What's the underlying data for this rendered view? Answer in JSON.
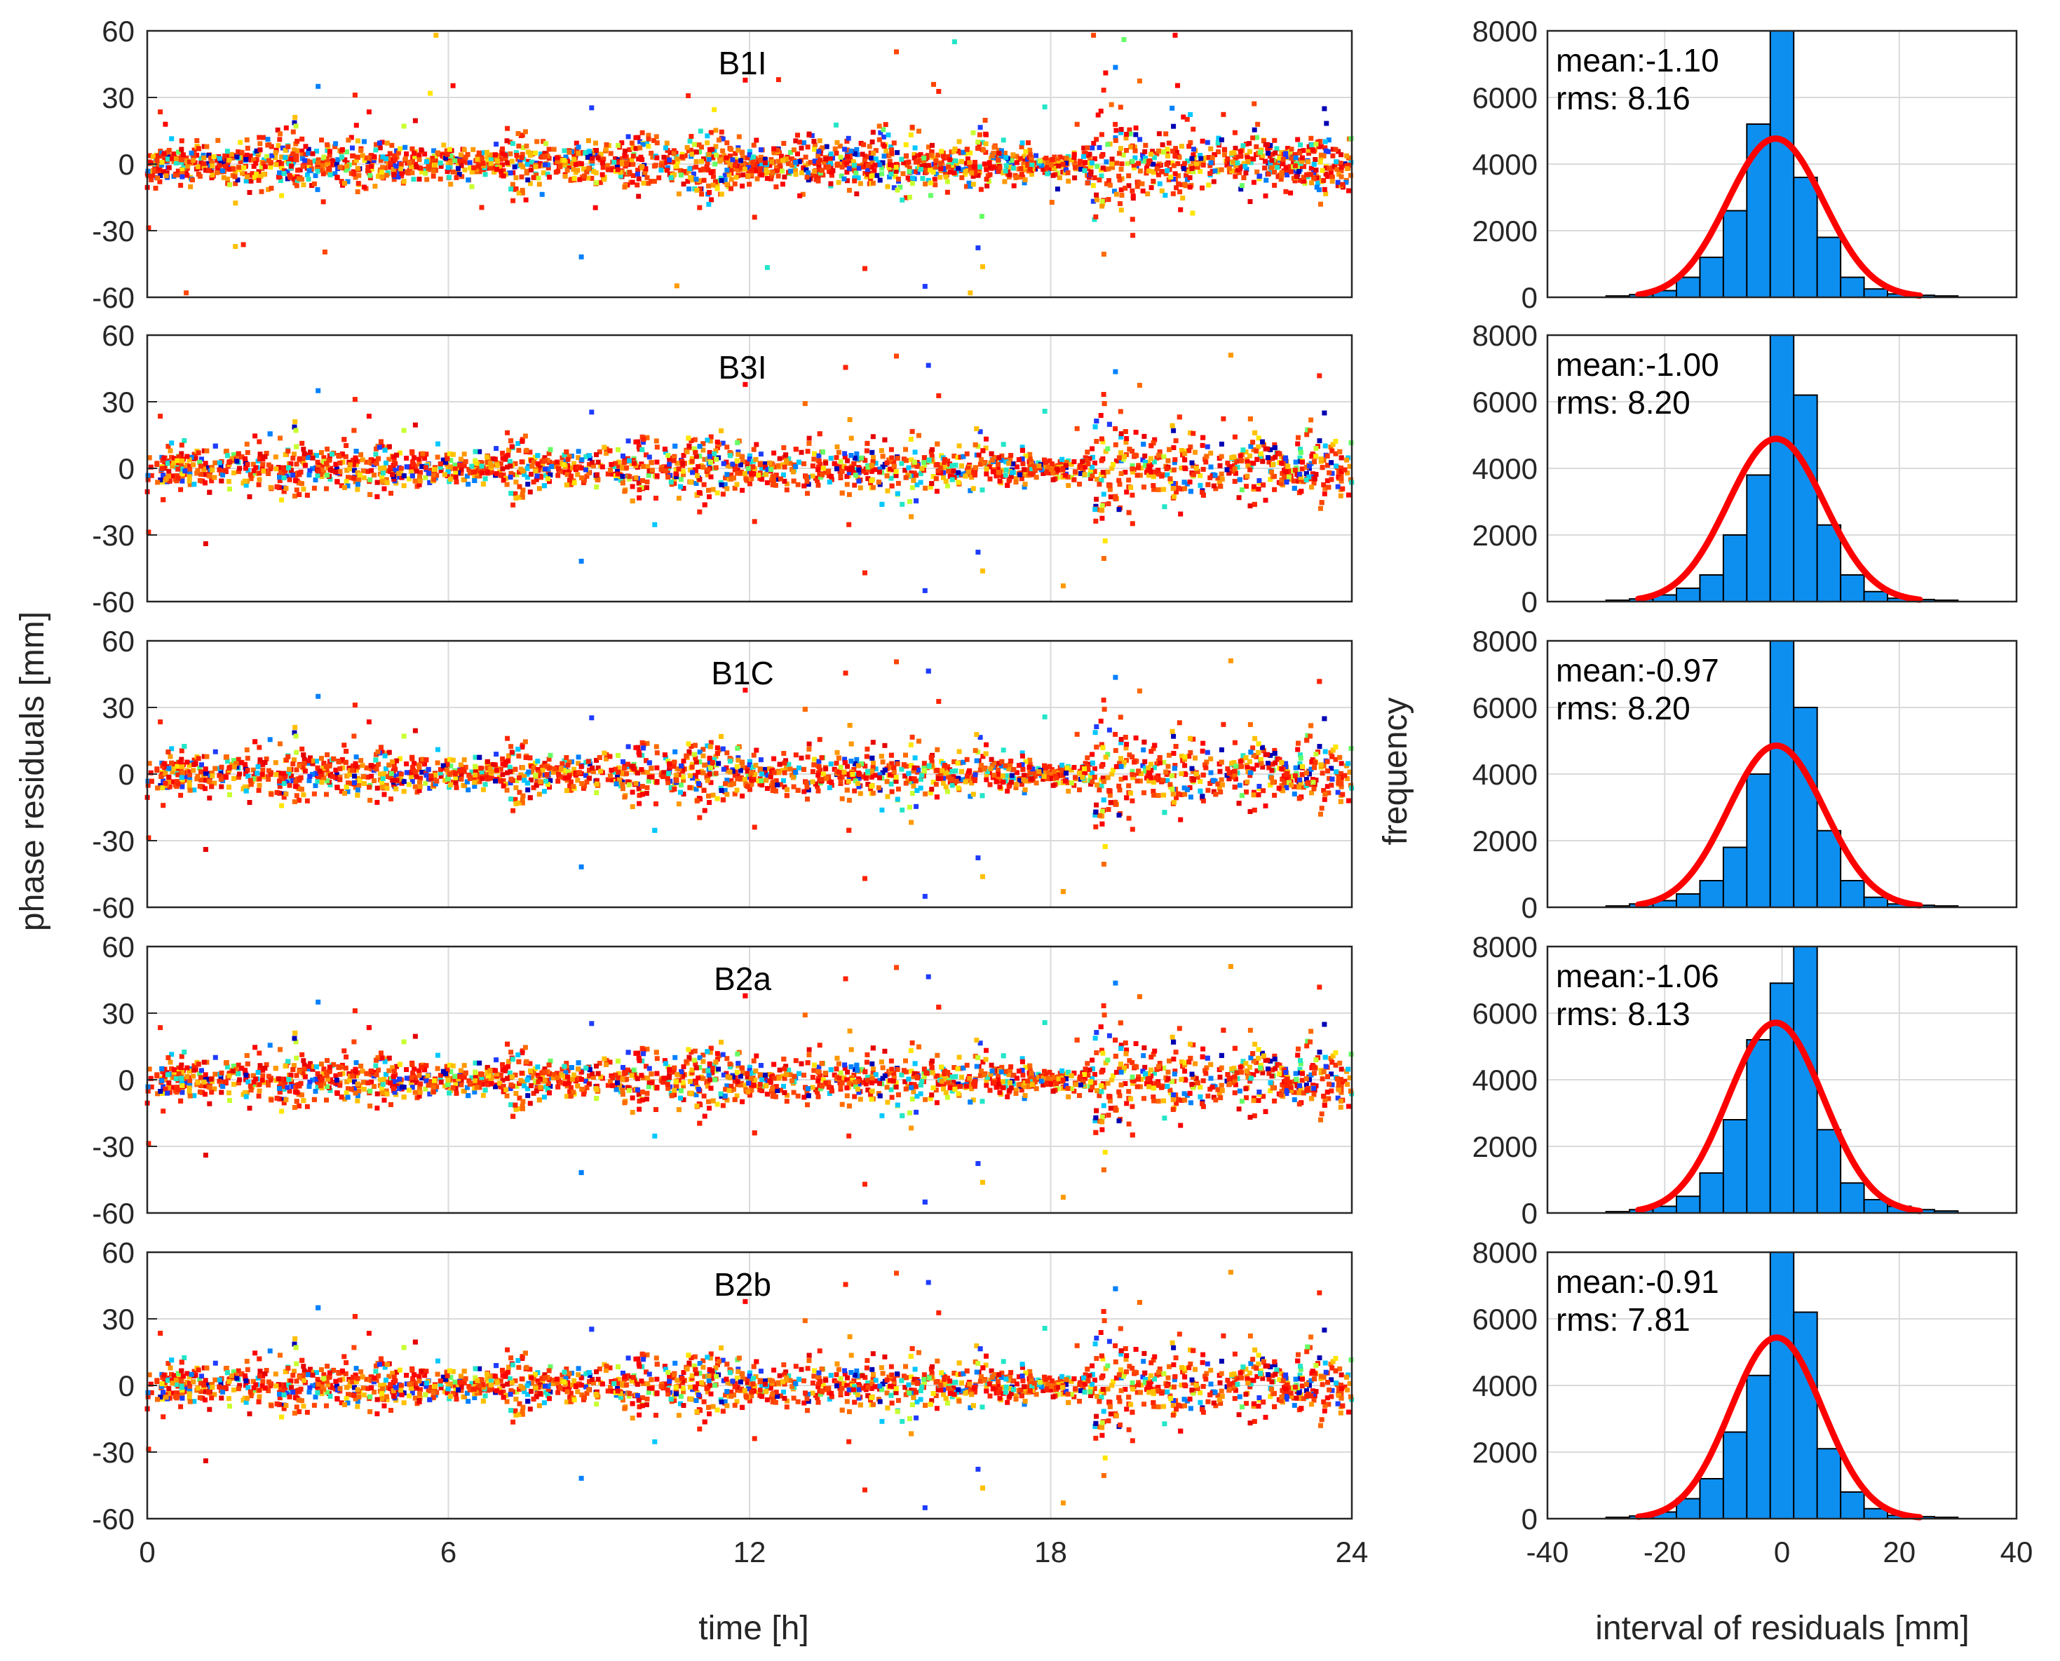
{
  "chart_data": {
    "type": "scatter",
    "xlabel": "time [h]",
    "ylabel": "phase residuals [mm]",
    "xlim": [
      0,
      24
    ],
    "ylim": [
      -60,
      60
    ],
    "xticks": [
      0,
      6,
      12,
      18,
      24
    ],
    "yticks": [
      60,
      30,
      0,
      -30,
      -60
    ],
    "grid": true,
    "panels": [
      {
        "name": "B1I"
      },
      {
        "name": "B3I"
      },
      {
        "name": "B1C"
      },
      {
        "name": "B2a"
      },
      {
        "name": "B2b"
      }
    ],
    "histograms": {
      "type": "bar",
      "xlabel": "interval of residuals [mm]",
      "ylabel": "frequency",
      "xlim": [
        -40,
        40
      ],
      "ylim": [
        0,
        8000
      ],
      "xticks": [
        -40,
        -20,
        0,
        20,
        40
      ],
      "yticks": [
        8000,
        6000,
        4000,
        2000,
        0
      ],
      "bin_centers": [
        -28,
        -24,
        -20,
        -16,
        -12,
        -8,
        -4,
        0,
        4,
        8,
        12,
        16,
        20,
        24,
        28
      ],
      "bin_width": 4,
      "bar_color": "#0d8ff0",
      "fit_color": "#ff0000",
      "panels": [
        {
          "name": "B1I",
          "mean_label": "mean:-1.10",
          "rms_label": "rms: 8.16",
          "mean": -1.1,
          "rms": 8.16,
          "counts": [
            40,
            80,
            200,
            600,
            1200,
            2600,
            5200,
            8000,
            3600,
            1800,
            600,
            250,
            100,
            60,
            40
          ]
        },
        {
          "name": "B3I",
          "mean_label": "mean:-1.00",
          "rms_label": "rms: 8.20",
          "mean": -1.0,
          "rms": 8.2,
          "counts": [
            40,
            80,
            200,
            400,
            800,
            2000,
            3800,
            8000,
            6200,
            2300,
            800,
            300,
            100,
            60,
            40
          ]
        },
        {
          "name": "B1C",
          "mean_label": "mean:-0.97",
          "rms_label": "rms: 8.20",
          "mean": -0.97,
          "rms": 8.2,
          "counts": [
            40,
            100,
            200,
            400,
            800,
            1800,
            4000,
            8000,
            6000,
            2300,
            800,
            300,
            100,
            60,
            40
          ]
        },
        {
          "name": "B2a",
          "mean_label": "mean:-1.06",
          "rms_label": "rms: 8.13",
          "mean": -1.06,
          "rms": 8.13,
          "counts": [
            40,
            100,
            200,
            500,
            1200,
            2800,
            5200,
            6900,
            8000,
            2500,
            900,
            400,
            200,
            100,
            60
          ]
        },
        {
          "name": "B2b",
          "mean_label": "mean:-0.91",
          "rms_label": "rms: 7.81",
          "mean": -0.91,
          "rms": 7.81,
          "counts": [
            40,
            80,
            200,
            600,
            1200,
            2600,
            4300,
            8000,
            6200,
            2100,
            800,
            300,
            100,
            60,
            40
          ]
        }
      ]
    }
  }
}
